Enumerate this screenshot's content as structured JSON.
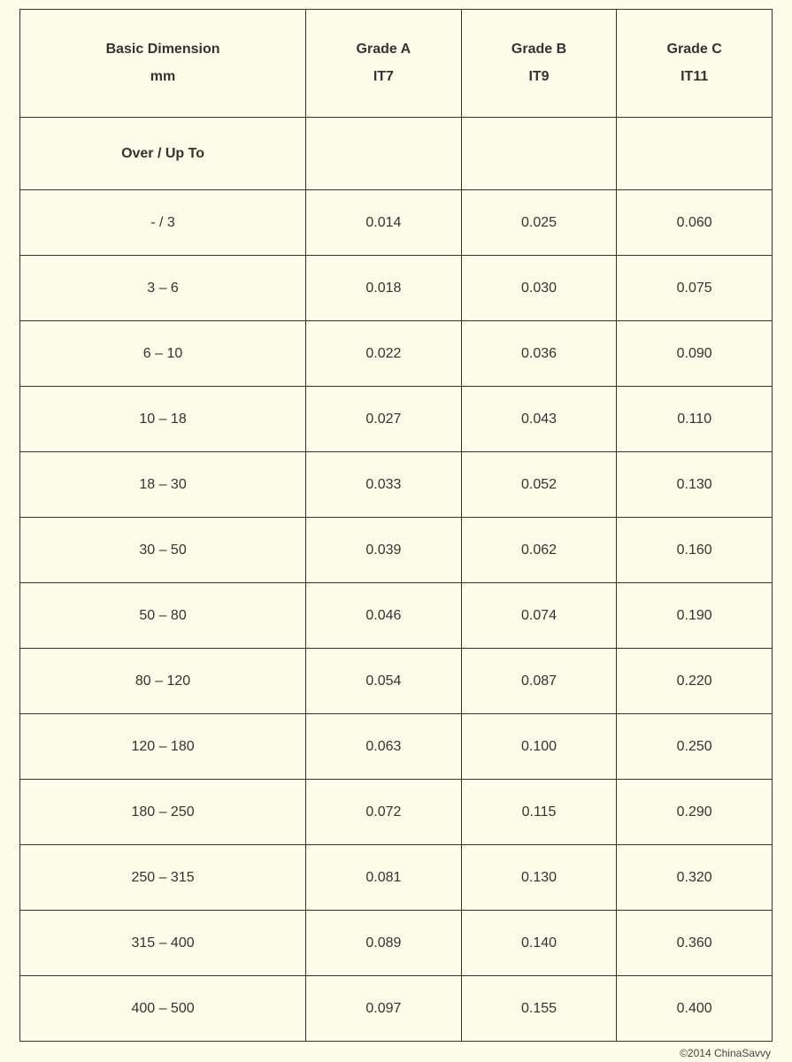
{
  "table": {
    "background_color": "#fdfce9",
    "border_color": "#333333",
    "text_color": "#333333",
    "font_family": "Verdana, Geneva, sans-serif",
    "header_fontsize": 16,
    "cell_fontsize": 16,
    "columns": [
      {
        "line1": "Basic Dimension",
        "line2": "mm"
      },
      {
        "line1": "Grade A",
        "line2": "IT7"
      },
      {
        "line1": "Grade B",
        "line2": "IT9"
      },
      {
        "line1": "Grade C",
        "line2": "IT11"
      }
    ],
    "subheader": "Over / Up To",
    "rows": [
      {
        "range": "- / 3",
        "grade_a": "0.014",
        "grade_b": "0.025",
        "grade_c": "0.060"
      },
      {
        "range": "3 – 6",
        "grade_a": "0.018",
        "grade_b": "0.030",
        "grade_c": "0.075"
      },
      {
        "range": "6 – 10",
        "grade_a": "0.022",
        "grade_b": "0.036",
        "grade_c": "0.090"
      },
      {
        "range": "10 – 18",
        "grade_a": "0.027",
        "grade_b": "0.043",
        "grade_c": "0.110"
      },
      {
        "range": "18 – 30",
        "grade_a": "0.033",
        "grade_b": "0.052",
        "grade_c": "0.130"
      },
      {
        "range": "30 – 50",
        "grade_a": "0.039",
        "grade_b": "0.062",
        "grade_c": "0.160"
      },
      {
        "range": "50 – 80",
        "grade_a": "0.046",
        "grade_b": "0.074",
        "grade_c": "0.190"
      },
      {
        "range": "80 – 120",
        "grade_a": "0.054",
        "grade_b": "0.087",
        "grade_c": "0.220"
      },
      {
        "range": "120 – 180",
        "grade_a": "0.063",
        "grade_b": "0.100",
        "grade_c": "0.250"
      },
      {
        "range": "180 – 250",
        "grade_a": "0.072",
        "grade_b": "0.115",
        "grade_c": "0.290"
      },
      {
        "range": "250 – 315",
        "grade_a": "0.081",
        "grade_b": "0.130",
        "grade_c": "0.320"
      },
      {
        "range": "315 – 400",
        "grade_a": "0.089",
        "grade_b": "0.140",
        "grade_c": "0.360"
      },
      {
        "range": "400 – 500",
        "grade_a": "0.097",
        "grade_b": "0.155",
        "grade_c": "0.400"
      }
    ]
  },
  "copyright": "©2014 ChinaSavvy"
}
